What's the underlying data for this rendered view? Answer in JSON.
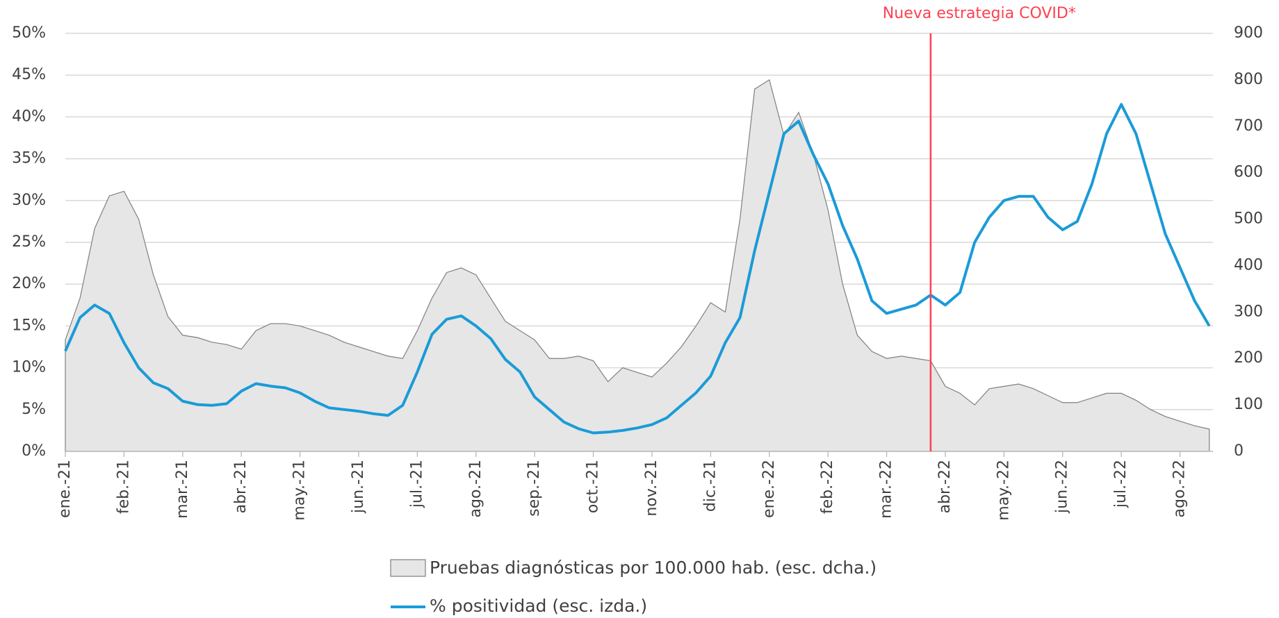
{
  "chart_data": {
    "type": "area-line",
    "annotation": {
      "text": "Nueva estrategia COVID*",
      "at": 59,
      "color": "#ff4050"
    },
    "categories": [
      "ene.-21",
      null,
      null,
      null,
      "feb.-21",
      null,
      null,
      null,
      "mar.-21",
      null,
      null,
      null,
      "abr.-21",
      null,
      null,
      null,
      "may.-21",
      null,
      null,
      null,
      "jun.-21",
      null,
      null,
      null,
      "jul.-21",
      null,
      null,
      null,
      "ago.-21",
      null,
      null,
      null,
      "sep.-21",
      null,
      null,
      null,
      "oct.-21",
      null,
      null,
      null,
      "nov.-21",
      null,
      null,
      null,
      "dic.-21",
      null,
      null,
      null,
      "ene.-22",
      null,
      null,
      null,
      "feb.-22",
      null,
      null,
      null,
      "mar.-22",
      null,
      null,
      null,
      "abr.-22",
      null,
      null,
      null,
      "may.-22",
      null,
      null,
      null,
      "jun.-22",
      null,
      null,
      null,
      "jul.-22",
      null,
      null,
      null,
      "ago.-22",
      null,
      null
    ],
    "series": [
      {
        "name": "Pruebas diagnósticas por 100.000 hab. (esc. dcha.)",
        "type": "area",
        "axis": "y2",
        "color": "#e6e6e6",
        "values": [
          240,
          330,
          480,
          550,
          560,
          500,
          380,
          290,
          250,
          245,
          235,
          230,
          220,
          260,
          275,
          275,
          270,
          260,
          250,
          235,
          225,
          215,
          205,
          200,
          260,
          330,
          385,
          395,
          380,
          330,
          280,
          260,
          240,
          200,
          200,
          205,
          195,
          150,
          180,
          170,
          160,
          190,
          225,
          270,
          320,
          300,
          500,
          780,
          800,
          680,
          730,
          640,
          520,
          360,
          250,
          215,
          200,
          205,
          200,
          195,
          140,
          125,
          100,
          135,
          140,
          145,
          135,
          120,
          105,
          105,
          115,
          125,
          125,
          110,
          90,
          75,
          65,
          55,
          48
        ]
      },
      {
        "name": "% positividad (esc. izda.)",
        "type": "line",
        "axis": "y",
        "color": "#1a9bd7",
        "values": [
          12,
          16,
          17.5,
          16.5,
          13,
          10,
          8.2,
          7.5,
          6,
          5.6,
          5.5,
          5.7,
          7.2,
          8.1,
          7.8,
          7.6,
          7,
          6,
          5.2,
          5,
          4.8,
          4.5,
          4.3,
          5.5,
          9.5,
          14,
          15.8,
          16.2,
          15,
          13.5,
          11,
          9.5,
          6.5,
          5,
          3.5,
          2.7,
          2.2,
          2.3,
          2.5,
          2.8,
          3.2,
          4,
          5.5,
          7,
          9,
          13,
          16,
          24,
          31,
          38,
          39.5,
          35.5,
          32,
          27,
          23,
          18,
          16.5,
          17,
          17.5,
          18.7,
          17.5,
          19,
          25,
          28,
          30,
          30.5,
          30.5,
          28,
          26.5,
          27.5,
          32,
          38,
          41.5,
          38,
          32,
          26,
          22,
          18,
          15
        ]
      }
    ],
    "ylim": [
      0,
      50
    ],
    "yticks": [
      {
        "value": 0,
        "label": "0%"
      },
      {
        "value": 5,
        "label": "5%"
      },
      {
        "value": 10,
        "label": "10%"
      },
      {
        "value": 15,
        "label": "15%"
      },
      {
        "value": 20,
        "label": "20%"
      },
      {
        "value": 25,
        "label": "25%"
      },
      {
        "value": 30,
        "label": "30%"
      },
      {
        "value": 35,
        "label": "35%"
      },
      {
        "value": 40,
        "label": "40%"
      },
      {
        "value": 45,
        "label": "45%"
      },
      {
        "value": 50,
        "label": "50%"
      }
    ],
    "y2lim": [
      0,
      900
    ],
    "y2ticks": [
      0,
      100,
      200,
      300,
      400,
      500,
      600,
      700,
      800,
      900
    ],
    "grid": true
  }
}
